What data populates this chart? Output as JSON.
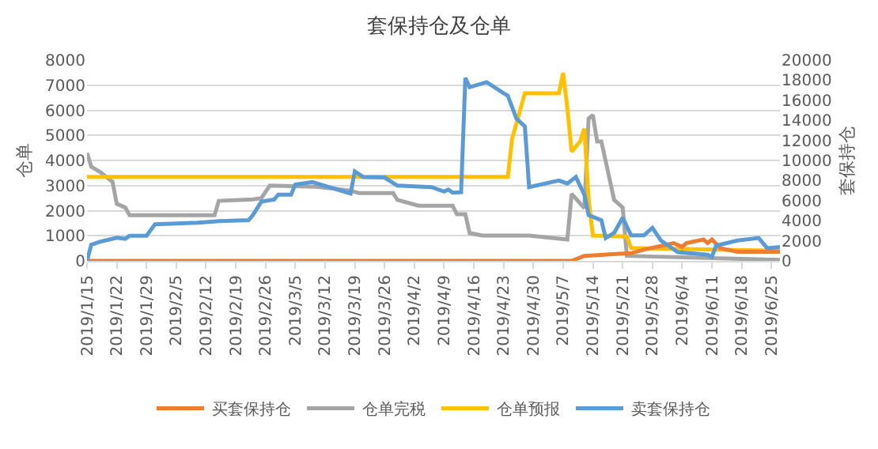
{
  "chart_data": {
    "type": "line",
    "title": "套保持仓及仓单",
    "ylabel": "仓单",
    "y2label": "套保持仓",
    "xlim": [
      "2019-01-15",
      "2019-06-27"
    ],
    "xticks": [
      {
        "value": "2019-01-15",
        "label": "2019/1/15"
      },
      {
        "value": "2019-01-22",
        "label": "2019/1/22"
      },
      {
        "value": "2019-01-29",
        "label": "2019/1/29"
      },
      {
        "value": "2019-02-05",
        "label": "2019/2/5"
      },
      {
        "value": "2019-02-12",
        "label": "2019/2/12"
      },
      {
        "value": "2019-02-19",
        "label": "2019/2/19"
      },
      {
        "value": "2019-02-26",
        "label": "2019/2/26"
      },
      {
        "value": "2019-03-05",
        "label": "2019/3/5"
      },
      {
        "value": "2019-03-12",
        "label": "2019/3/12"
      },
      {
        "value": "2019-03-19",
        "label": "2019/3/19"
      },
      {
        "value": "2019-03-26",
        "label": "2019/3/26"
      },
      {
        "value": "2019-04-02",
        "label": "2019/4/2"
      },
      {
        "value": "2019-04-09",
        "label": "2019/4/9"
      },
      {
        "value": "2019-04-16",
        "label": "2019/4/16"
      },
      {
        "value": "2019-04-23",
        "label": "2019/4/23"
      },
      {
        "value": "2019-04-30",
        "label": "2019/4/30"
      },
      {
        "value": "2019-05-07",
        "label": "2019/5/7"
      },
      {
        "value": "2019-05-14",
        "label": "2019/5/14"
      },
      {
        "value": "2019-05-21",
        "label": "2019/5/21"
      },
      {
        "value": "2019-05-28",
        "label": "2019/5/28"
      },
      {
        "value": "2019-06-04",
        "label": "2019/6/4"
      },
      {
        "value": "2019-06-11",
        "label": "2019/6/11"
      },
      {
        "value": "2019-06-18",
        "label": "2019/6/18"
      },
      {
        "value": "2019-06-25",
        "label": "2019/6/25"
      }
    ],
    "ylim": [
      0,
      8000
    ],
    "yticks": [
      0,
      1000,
      2000,
      3000,
      4000,
      5000,
      6000,
      7000,
      8000
    ],
    "y2lim": [
      0,
      20000
    ],
    "y2ticks": [
      0,
      2000,
      4000,
      6000,
      8000,
      10000,
      12000,
      14000,
      16000,
      18000,
      20000
    ],
    "grid": "y",
    "legend": "bottom",
    "marker": "none",
    "line_style": "solid",
    "series": [
      {
        "name": "买套保持仓",
        "color": "#ed7d31",
        "axis": "y2",
        "x": [
          "2019-01-15",
          "2019-05-09",
          "2019-05-12",
          "2019-05-23",
          "2019-05-26",
          "2019-06-02",
          "2019-06-04",
          "2019-06-05",
          "2019-06-09",
          "2019-06-10",
          "2019-06-11",
          "2019-06-13",
          "2019-06-17",
          "2019-06-27"
        ],
        "values": [
          0,
          0,
          500,
          760,
          1110,
          1770,
          1400,
          1770,
          2130,
          1770,
          2130,
          1270,
          900,
          900
        ]
      },
      {
        "name": "仓单完税",
        "color": "#a5a5a5",
        "x": [
          "2019-01-15",
          "2019-01-16",
          "2019-01-18",
          "2019-01-21",
          "2019-01-22",
          "2019-01-24",
          "2019-01-25",
          "2019-02-14",
          "2019-02-15",
          "2019-02-23",
          "2019-02-25",
          "2019-02-27",
          "2019-03-10",
          "2019-03-18",
          "2019-03-20",
          "2019-03-28",
          "2019-03-29",
          "2019-04-03",
          "2019-04-11",
          "2019-04-12",
          "2019-04-14",
          "2019-04-15",
          "2019-04-18",
          "2019-04-29",
          "2019-05-08",
          "2019-05-09",
          "2019-05-12",
          "2019-05-13",
          "2019-05-14",
          "2019-05-15",
          "2019-05-16",
          "2019-05-19",
          "2019-05-21",
          "2019-05-22",
          "2019-06-27"
        ],
        "values": [
          4300,
          3750,
          3550,
          3150,
          2270,
          2130,
          1820,
          1820,
          2390,
          2450,
          2500,
          3000,
          2950,
          2800,
          2700,
          2700,
          2430,
          2200,
          2200,
          1860,
          1860,
          1110,
          1010,
          1010,
          850,
          2670,
          2100,
          5670,
          5810,
          4760,
          4760,
          2430,
          2130,
          200,
          40
        ]
      },
      {
        "name": "仓单预报",
        "color": "#ffc000",
        "x": [
          "2019-01-15",
          "2019-04-24",
          "2019-04-25",
          "2019-04-28",
          "2019-05-06",
          "2019-05-07",
          "2019-05-08",
          "2019-05-09",
          "2019-05-11",
          "2019-05-12",
          "2019-05-13",
          "2019-05-14",
          "2019-05-22",
          "2019-05-23",
          "2019-06-27"
        ],
        "values": [
          3350,
          3350,
          4860,
          6680,
          6680,
          7490,
          6080,
          4350,
          4760,
          5270,
          2430,
          1010,
          970,
          510,
          400
        ]
      },
      {
        "name": "卖套保持仓",
        "color": "#5b9bd5",
        "axis": "y2",
        "x": [
          "2019-01-15",
          "2019-01-16",
          "2019-01-18",
          "2019-01-22",
          "2019-01-24",
          "2019-01-25",
          "2019-01-29",
          "2019-01-31",
          "2019-02-10",
          "2019-02-15",
          "2019-02-22",
          "2019-02-23",
          "2019-02-25",
          "2019-02-28",
          "2019-03-01",
          "2019-03-04",
          "2019-03-05",
          "2019-03-09",
          "2019-03-18",
          "2019-03-19",
          "2019-03-21",
          "2019-03-26",
          "2019-03-29",
          "2019-04-06",
          "2019-04-09",
          "2019-04-10",
          "2019-04-11",
          "2019-04-13",
          "2019-04-14",
          "2019-04-15",
          "2019-04-19",
          "2019-04-23",
          "2019-04-24",
          "2019-04-26",
          "2019-04-28",
          "2019-04-29",
          "2019-05-06",
          "2019-05-08",
          "2019-05-10",
          "2019-05-12",
          "2019-05-13",
          "2019-05-16",
          "2019-05-17",
          "2019-05-19",
          "2019-05-21",
          "2019-05-23",
          "2019-05-26",
          "2019-05-28",
          "2019-05-30",
          "2019-06-03",
          "2019-06-10",
          "2019-06-11",
          "2019-06-12",
          "2019-06-17",
          "2019-06-22",
          "2019-06-24",
          "2019-06-27"
        ],
        "values": [
          0,
          1600,
          1900,
          2300,
          2200,
          2500,
          2500,
          3650,
          3800,
          3950,
          4050,
          4550,
          5900,
          6100,
          6600,
          6600,
          7600,
          7850,
          6700,
          8900,
          8350,
          8300,
          7500,
          7350,
          6900,
          7100,
          6800,
          6840,
          18230,
          17300,
          17800,
          16700,
          16450,
          14180,
          13400,
          7340,
          8000,
          7700,
          8350,
          6580,
          4560,
          4050,
          2280,
          2780,
          4300,
          2530,
          2530,
          3290,
          2030,
          860,
          610,
          400,
          1520,
          2030,
          2280,
          1270,
          1370
        ]
      }
    ]
  }
}
